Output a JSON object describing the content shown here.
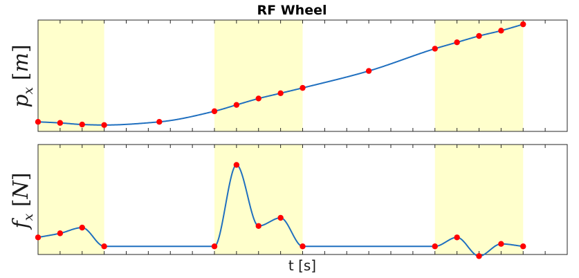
{
  "chart_data": {
    "type": "line",
    "title": "RF Wheel",
    "xlabel": "t [s]",
    "grid": false,
    "line_color": "#1f6fbf",
    "marker_color": "#ff0000",
    "band_color": "#ffffcc",
    "xlim": [
      0,
      24
    ],
    "x_ticks": [
      1,
      2,
      3,
      4,
      5,
      6,
      7,
      8,
      9,
      10,
      11,
      12,
      13,
      14,
      15,
      16,
      17,
      18,
      19,
      20,
      21,
      22,
      23
    ],
    "shaded_intervals": [
      [
        0,
        3
      ],
      [
        8,
        12
      ],
      [
        18,
        22
      ]
    ],
    "subplots": [
      {
        "name": "position",
        "ylabel": {
          "main": "p",
          "sub": "x",
          "unit": "m"
        },
        "ylim": [
          -0.05,
          1.0
        ],
        "knots": {
          "x": [
            0,
            1,
            2,
            3,
            5.5,
            8,
            9,
            10,
            11,
            12,
            15,
            18,
            19,
            20,
            21,
            22
          ],
          "y": [
            0.04,
            0.03,
            0.015,
            0.01,
            0.04,
            0.14,
            0.2,
            0.26,
            0.31,
            0.36,
            0.52,
            0.73,
            0.79,
            0.85,
            0.9,
            0.96
          ]
        },
        "markers": {
          "x": [
            0,
            1,
            2,
            3,
            5.5,
            8,
            9,
            10,
            11,
            12,
            15,
            18,
            19,
            20,
            21,
            22
          ],
          "y": [
            0.04,
            0.03,
            0.015,
            0.01,
            0.04,
            0.14,
            0.2,
            0.26,
            0.31,
            0.36,
            0.52,
            0.73,
            0.79,
            0.85,
            0.9,
            0.96
          ]
        }
      },
      {
        "name": "force",
        "ylabel": {
          "main": "f",
          "sub": "x",
          "unit": "N"
        },
        "ylim": [
          -0.1,
          1.25
        ],
        "knots": {
          "x": [
            0,
            1,
            2,
            3,
            8,
            9,
            10,
            11,
            12,
            18,
            19,
            20,
            21,
            22
          ],
          "y": [
            0.11,
            0.16,
            0.23,
            0.0,
            0.0,
            1.0,
            0.25,
            0.35,
            0.0,
            0.0,
            0.11,
            -0.12,
            0.03,
            0.0
          ]
        },
        "markers": {
          "x": [
            0,
            1,
            2,
            3,
            8,
            9,
            10,
            11,
            12,
            18,
            19,
            20,
            21,
            22
          ],
          "y": [
            0.11,
            0.16,
            0.23,
            0.0,
            0.0,
            1.0,
            0.25,
            0.35,
            0.0,
            0.0,
            0.11,
            -0.12,
            0.03,
            0.0
          ]
        }
      }
    ]
  }
}
